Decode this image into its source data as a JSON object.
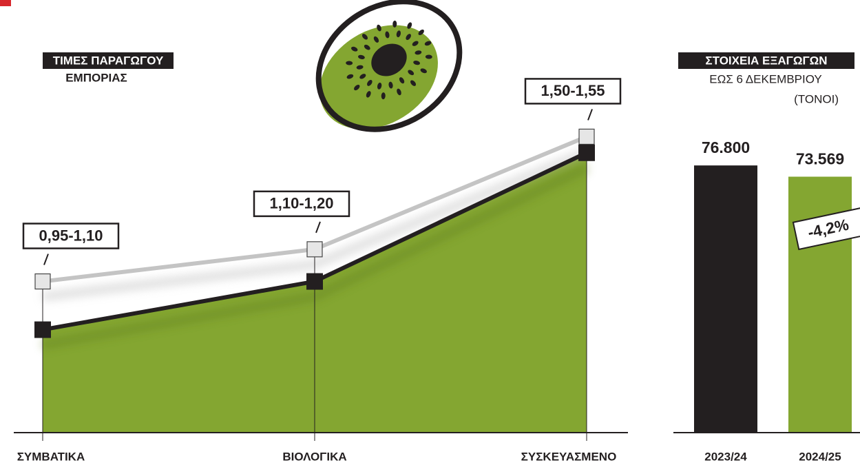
{
  "chart_data": [
    {
      "type": "area",
      "title": "ΤΙΜΕΣ ΠΑΡΑΓΩΓΟΥ",
      "subtitle": "ΕΜΠΟΡΙΑΣ",
      "categories": [
        "ΣΥΜΒΑΤΙΚΑ",
        "ΒΙΟΛΟΓΙΚΑ",
        "ΣΥΣΚΕΥΑΣΜΕΝΟ"
      ],
      "series": [
        {
          "color": "#231f20",
          "fill": "#84a631",
          "values": [
            0.95,
            1.1,
            1.5
          ]
        },
        {
          "color": "#c4c4c4",
          "values": [
            1.1,
            1.2,
            1.55
          ]
        }
      ],
      "range_labels": [
        "0,95-1,10",
        "1,10-1,20",
        "1,50-1,55"
      ],
      "ylim": [
        0.63,
        1.9
      ]
    },
    {
      "type": "bar",
      "title": "ΣΤΟΙΧΕΙΑ ΕΞΑΓΩΓΩΝ",
      "subtitle": "ΕΩΣ 6 ΔΕΚΕΜΒΡΙΟΥ",
      "unit": "(ΤΟΝΟΙ)",
      "categories": [
        "2023/24",
        "2024/25"
      ],
      "values": [
        76800,
        73569
      ],
      "value_labels": [
        "76.800",
        "73.569"
      ],
      "colors": [
        "#231f20",
        "#84a631"
      ],
      "annotation": "-4,2%",
      "ylim": [
        0,
        100000
      ]
    }
  ]
}
